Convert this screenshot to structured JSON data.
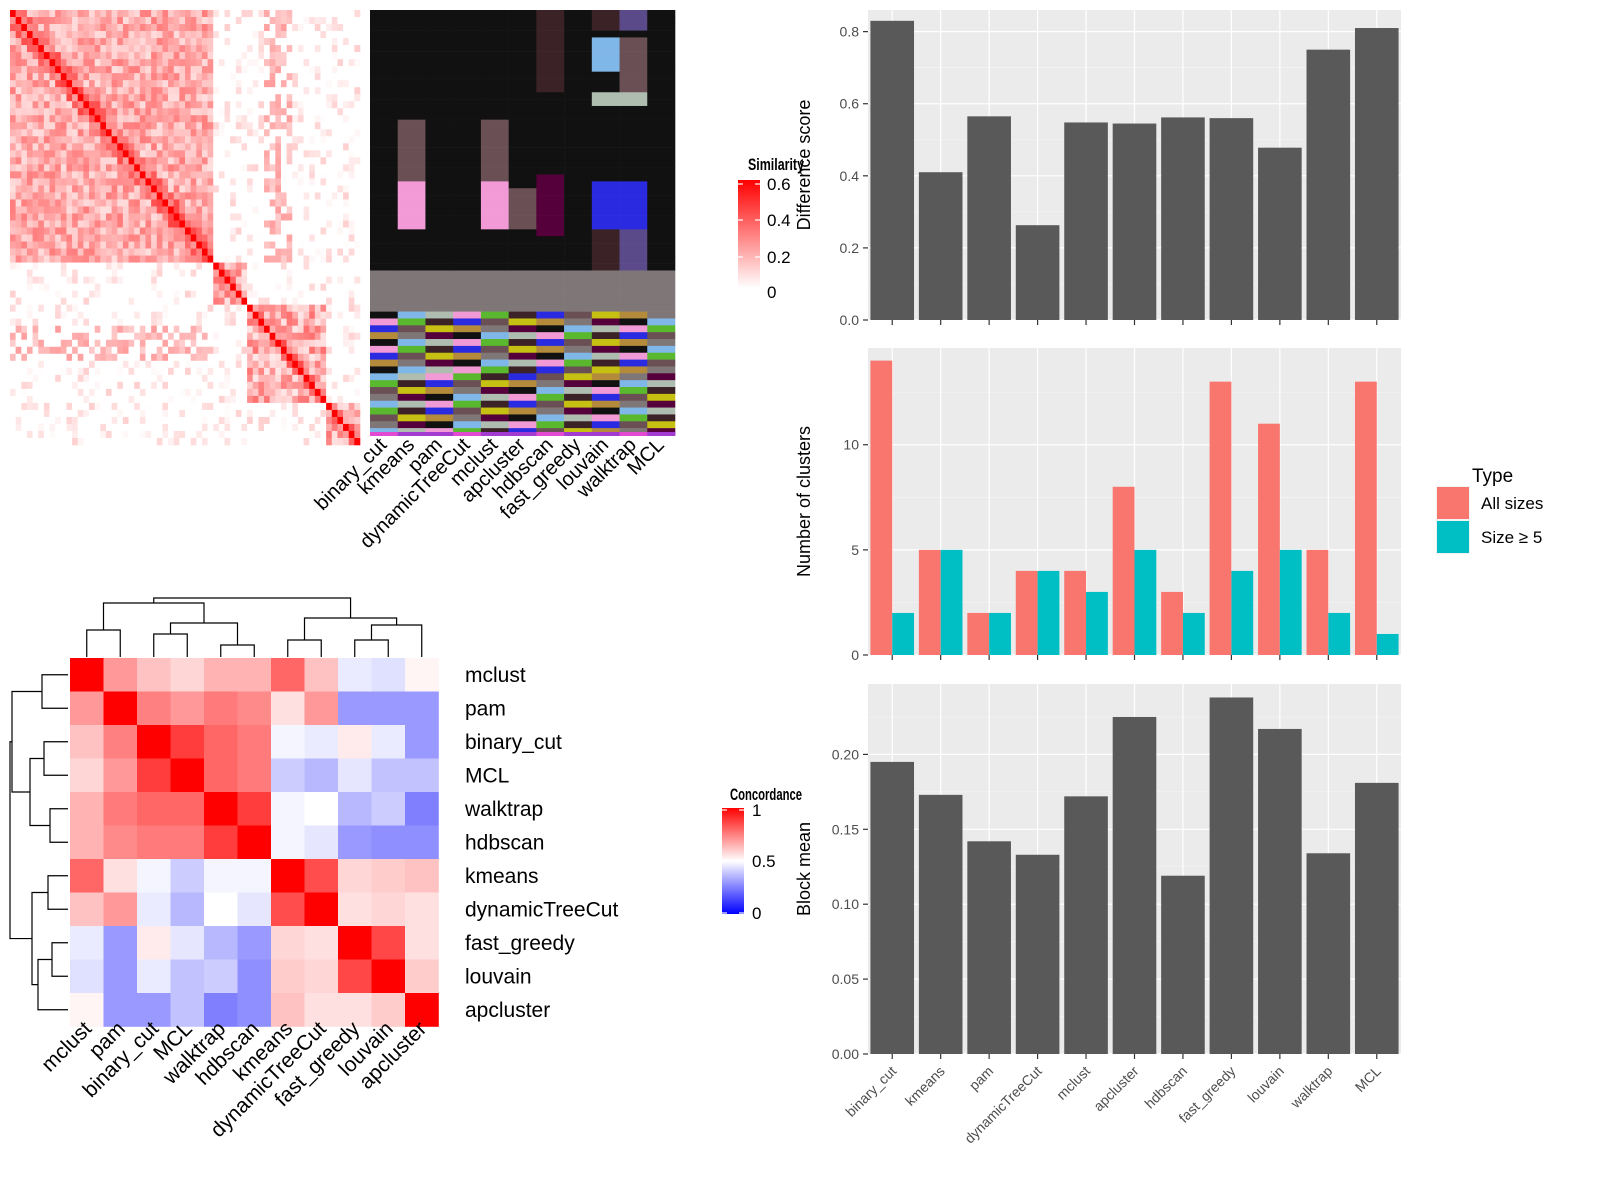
{
  "methods_a": [
    "binary_cut",
    "kmeans",
    "pam",
    "dynamicTreeCut",
    "mclust",
    "apcluster",
    "hdbscan",
    "fast_greedy",
    "louvain",
    "walktrap",
    "MCL"
  ],
  "similarity_legend": {
    "title": "Similarity",
    "ticks": [
      "0",
      "0.2",
      "0.4",
      "0.6"
    ],
    "colors": {
      "low": "#ffffff",
      "high": "#ff0000"
    }
  },
  "concordance_legend": {
    "title": "Concordance",
    "ticks": [
      "0",
      "0.5",
      "1"
    ],
    "colors": {
      "low": "#0000ff",
      "mid": "#ffffff",
      "high": "#ff0000"
    }
  },
  "concordance": {
    "rows": [
      "mclust",
      "pam",
      "binary_cut",
      "MCL",
      "walktrap",
      "hdbscan",
      "kmeans",
      "dynamicTreeCut",
      "fast_greedy",
      "louvain",
      "apcluster"
    ],
    "cols": [
      "mclust",
      "pam",
      "binary_cut",
      "MCL",
      "walktrap",
      "hdbscan",
      "kmeans",
      "dynamicTreeCut",
      "fast_greedy",
      "louvain",
      "apcluster"
    ],
    "values": [
      [
        1.0,
        0.7,
        0.62,
        0.58,
        0.65,
        0.65,
        0.8,
        0.62,
        0.46,
        0.44,
        0.52
      ],
      [
        0.7,
        1.0,
        0.75,
        0.7,
        0.76,
        0.73,
        0.56,
        0.7,
        0.3,
        0.3,
        0.3
      ],
      [
        0.62,
        0.75,
        1.0,
        0.88,
        0.8,
        0.76,
        0.48,
        0.46,
        0.54,
        0.46,
        0.3
      ],
      [
        0.58,
        0.7,
        0.88,
        1.0,
        0.8,
        0.76,
        0.4,
        0.36,
        0.45,
        0.38,
        0.38
      ],
      [
        0.65,
        0.76,
        0.8,
        0.8,
        1.0,
        0.88,
        0.48,
        0.5,
        0.36,
        0.4,
        0.25
      ],
      [
        0.65,
        0.73,
        0.76,
        0.76,
        0.88,
        1.0,
        0.48,
        0.45,
        0.3,
        0.28,
        0.28
      ],
      [
        0.8,
        0.56,
        0.48,
        0.4,
        0.48,
        0.48,
        1.0,
        0.85,
        0.58,
        0.6,
        0.62
      ],
      [
        0.62,
        0.7,
        0.46,
        0.36,
        0.5,
        0.45,
        0.85,
        1.0,
        0.56,
        0.58,
        0.56
      ],
      [
        0.46,
        0.3,
        0.54,
        0.45,
        0.36,
        0.3,
        0.58,
        0.56,
        1.0,
        0.86,
        0.56
      ],
      [
        0.44,
        0.3,
        0.46,
        0.38,
        0.4,
        0.28,
        0.6,
        0.58,
        0.86,
        1.0,
        0.6
      ],
      [
        0.52,
        0.3,
        0.3,
        0.38,
        0.25,
        0.28,
        0.62,
        0.56,
        0.56,
        0.6,
        1.0
      ]
    ]
  },
  "chart_data": [
    {
      "type": "bar",
      "categories": [
        "binary_cut",
        "kmeans",
        "pam",
        "dynamicTreeCut",
        "mclust",
        "apcluster",
        "hdbscan",
        "fast_greedy",
        "louvain",
        "walktrap",
        "MCL"
      ],
      "values": [
        0.83,
        0.41,
        0.565,
        0.263,
        0.548,
        0.545,
        0.562,
        0.56,
        0.478,
        0.75,
        0.81
      ],
      "ylabel": "Difference score",
      "ylim": [
        0,
        0.86
      ],
      "yticks": [
        0.0,
        0.2,
        0.4,
        0.6,
        0.8
      ],
      "yticklabels": [
        "0.0",
        "0.2",
        "0.4",
        "0.6",
        "0.8"
      ]
    },
    {
      "type": "bar",
      "categories": [
        "binary_cut",
        "kmeans",
        "pam",
        "dynamicTreeCut",
        "mclust",
        "apcluster",
        "hdbscan",
        "fast_greedy",
        "louvain",
        "walktrap",
        "MCL"
      ],
      "series": [
        {
          "name": "All sizes",
          "values": [
            14,
            5,
            2,
            4,
            4,
            8,
            3,
            13,
            11,
            5,
            13
          ],
          "color": "#f8766d"
        },
        {
          "name": "Size ≥ 5",
          "values": [
            2,
            5,
            2,
            4,
            3,
            5,
            2,
            4,
            5,
            2,
            1
          ],
          "color": "#00bfc4"
        }
      ],
      "ylabel": "Number of clusters",
      "ylim": [
        0,
        14.6
      ],
      "yticks": [
        0,
        5,
        10
      ],
      "yticklabels": [
        "0",
        "5",
        "10"
      ],
      "legend_title": "Type",
      "legend_position": "right"
    },
    {
      "type": "bar",
      "categories": [
        "binary_cut",
        "kmeans",
        "pam",
        "dynamicTreeCut",
        "mclust",
        "apcluster",
        "hdbscan",
        "fast_greedy",
        "louvain",
        "walktrap",
        "MCL"
      ],
      "values": [
        0.195,
        0.173,
        0.142,
        0.133,
        0.172,
        0.225,
        0.119,
        0.238,
        0.217,
        0.134,
        0.181
      ],
      "ylabel": "Block mean",
      "ylim": [
        0,
        0.247
      ],
      "yticks": [
        0.0,
        0.05,
        0.1,
        0.15,
        0.2
      ],
      "yticklabels": [
        "0.00",
        "0.05",
        "0.10",
        "0.15",
        "0.20"
      ],
      "xticklabels": [
        "binary_cut",
        "kmeans",
        "pam",
        "dynamicTreeCut",
        "mclust",
        "apcluster",
        "hdbscan",
        "fast_greedy",
        "louvain",
        "walktrap",
        "MCL"
      ]
    }
  ]
}
